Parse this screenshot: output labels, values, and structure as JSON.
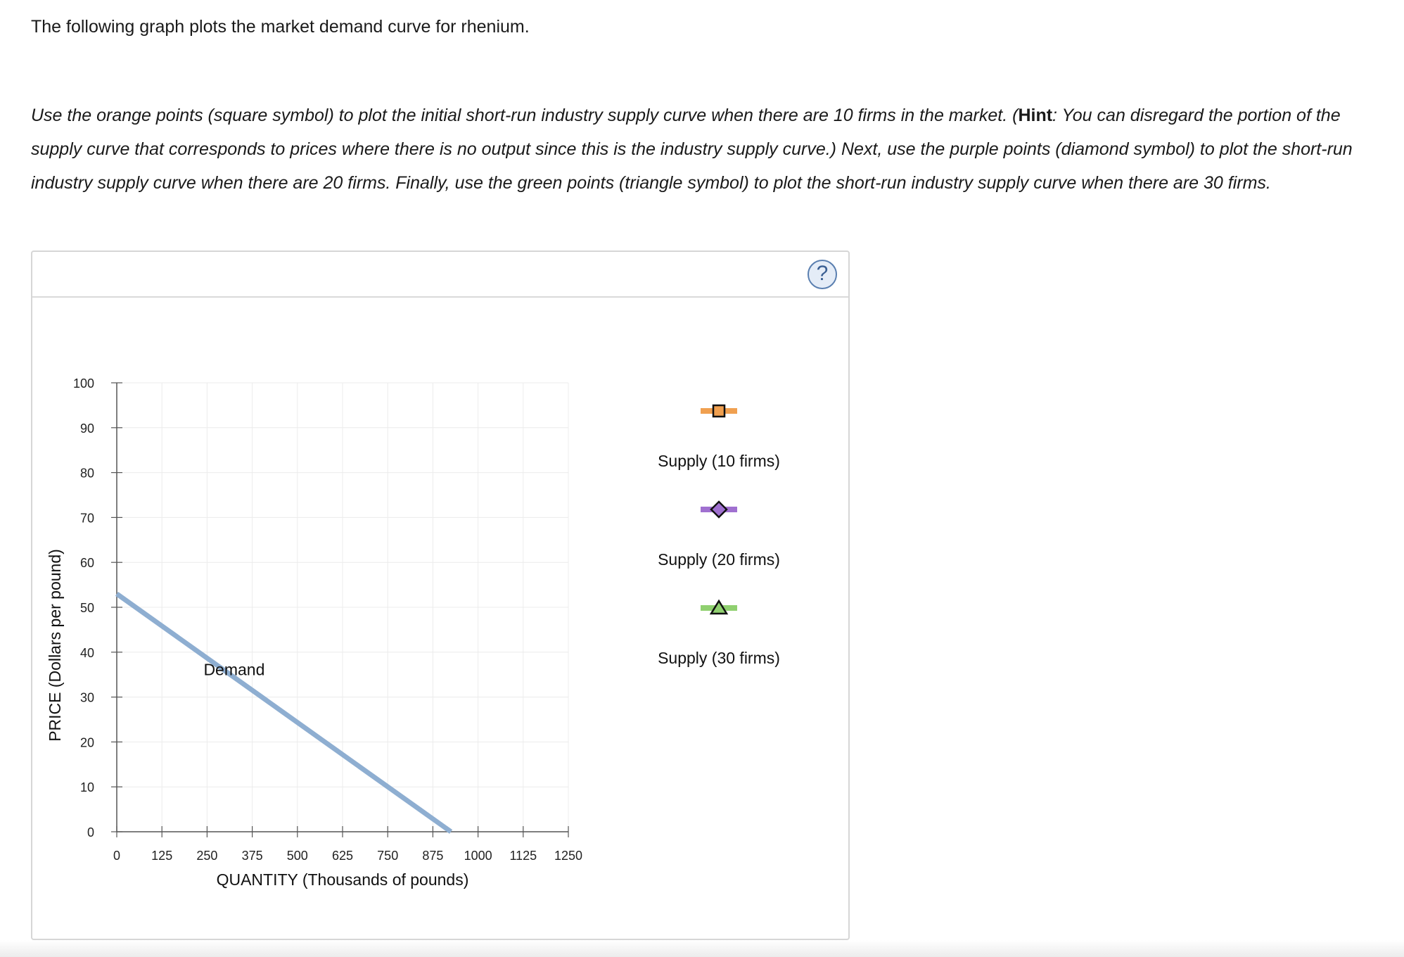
{
  "intro_text": "The following graph plots the market demand curve for rhenium.",
  "instructions": {
    "part1": "Use the orange points (square symbol) to plot the initial short-run industry supply curve when there are 10 firms in the market. (",
    "hint_word": "Hint",
    "part2": ": You can disregard the portion of the supply curve that corresponds to prices where there is no output since this is the industry supply curve.) Next, use the purple points (diamond symbol) to plot the short-run industry supply curve when there are 20 firms. Finally, use the green points (triangle symbol) to plot the short-run industry supply curve when there are 30 firms."
  },
  "help_glyph": "?",
  "legend": [
    {
      "label": "Supply (10 firms)",
      "symbol": "square",
      "color": "#f0a050"
    },
    {
      "label": "Supply (20 firms)",
      "symbol": "diamond",
      "color": "#a070d0"
    },
    {
      "label": "Supply (30 firms)",
      "symbol": "triangle",
      "color": "#90d070"
    }
  ],
  "chart_data": {
    "type": "line",
    "xlabel": "QUANTITY (Thousands of pounds)",
    "ylabel": "PRICE (Dollars per pound)",
    "xlim": [
      0,
      1250
    ],
    "ylim": [
      0,
      100
    ],
    "xticks": [
      0,
      125,
      250,
      375,
      500,
      625,
      750,
      875,
      1000,
      1125,
      1250
    ],
    "yticks": [
      0,
      10,
      20,
      30,
      40,
      50,
      60,
      70,
      80,
      90,
      100
    ],
    "grid": true,
    "series": [
      {
        "name": "Demand",
        "color": "#8eaed1",
        "points": [
          [
            0,
            53
          ],
          [
            925,
            0
          ]
        ]
      }
    ],
    "annotations": [
      {
        "text": "Demand",
        "x": 325,
        "y": 35
      }
    ]
  }
}
